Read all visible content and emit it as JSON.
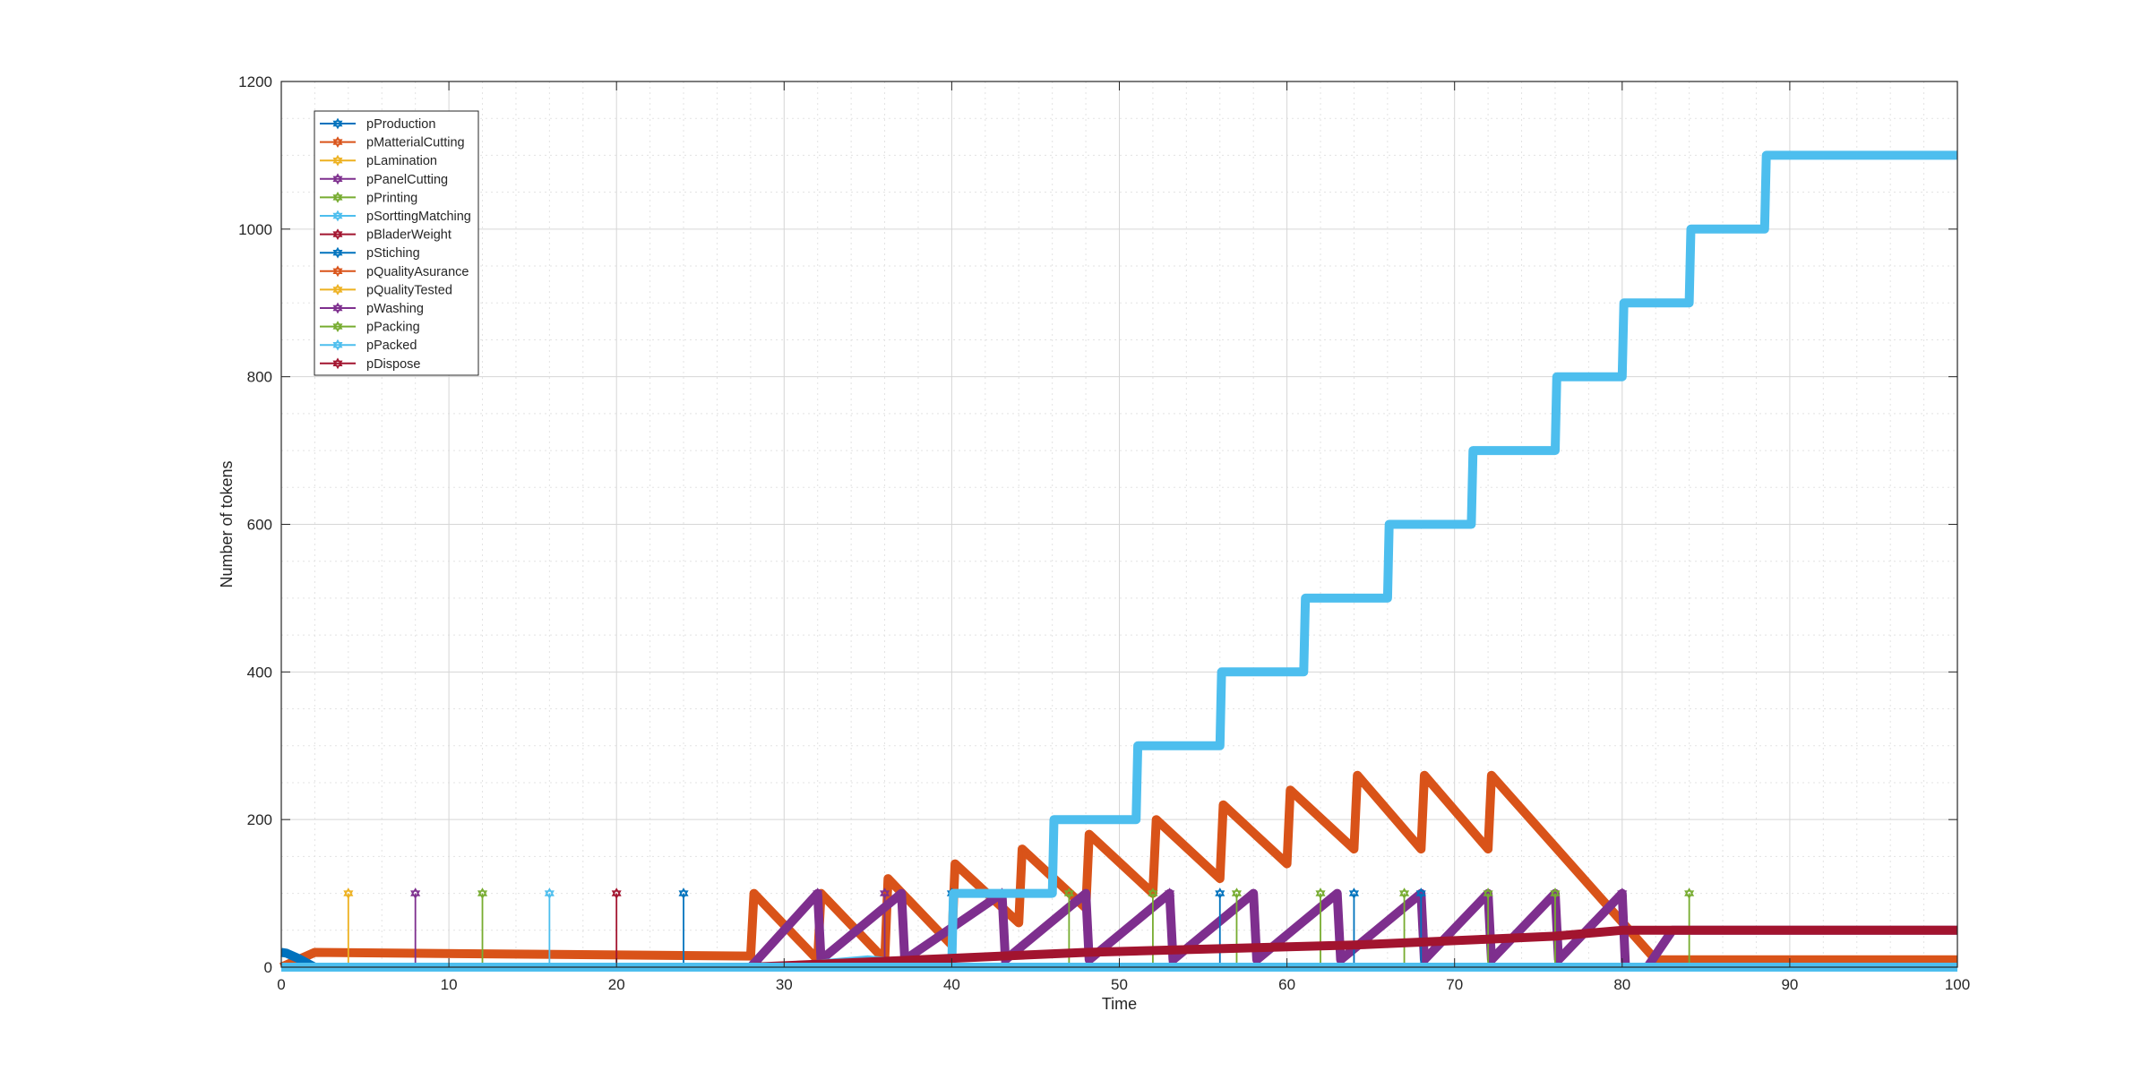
{
  "chart_data": {
    "type": "line",
    "title": "",
    "xlabel": "Time",
    "ylabel": "Number of tokens",
    "xlim": [
      0,
      100
    ],
    "ylim": [
      0,
      1200
    ],
    "xticks": [
      0,
      10,
      20,
      30,
      40,
      50,
      60,
      70,
      80,
      90,
      100
    ],
    "yticks": [
      0,
      200,
      400,
      600,
      800,
      1000,
      1200
    ],
    "grid": true,
    "minor_grid": true,
    "legend_position": "top-left",
    "series": [
      {
        "name": "pProduction",
        "color": "#0072BD",
        "points": [
          [
            0,
            20
          ],
          [
            0.3,
            19
          ],
          [
            1,
            12
          ],
          [
            2,
            0
          ],
          [
            100,
            0
          ]
        ],
        "spikes_at": [
          24,
          40,
          56,
          64,
          68
        ],
        "spike_height": 100
      },
      {
        "name": "pMatterialCutting",
        "color": "#D95319",
        "points": [
          [
            0,
            0
          ],
          [
            2,
            20
          ],
          [
            28,
            15
          ],
          [
            28.2,
            100
          ],
          [
            32,
            10
          ],
          [
            32.2,
            100
          ],
          [
            36,
            10
          ],
          [
            36.2,
            120
          ],
          [
            40,
            30
          ],
          [
            40.2,
            140
          ],
          [
            44,
            60
          ],
          [
            44.2,
            160
          ],
          [
            48,
            80
          ],
          [
            48.2,
            180
          ],
          [
            52,
            100
          ],
          [
            52.2,
            200
          ],
          [
            56,
            120
          ],
          [
            56.2,
            220
          ],
          [
            60,
            140
          ],
          [
            60.2,
            240
          ],
          [
            64,
            160
          ],
          [
            64.2,
            260
          ],
          [
            68,
            160
          ],
          [
            68.2,
            260
          ],
          [
            72,
            160
          ],
          [
            72.2,
            260
          ],
          [
            82,
            10
          ],
          [
            100,
            10
          ]
        ]
      },
      {
        "name": "pLamination",
        "color": "#EDB120",
        "points": [
          [
            0,
            0
          ],
          [
            100,
            0
          ]
        ],
        "spikes_at": [
          4
        ],
        "spike_height": 100
      },
      {
        "name": "pPanelCutting",
        "color": "#7E2F8E",
        "points": [
          [
            0,
            0
          ],
          [
            28,
            0
          ],
          [
            32,
            100
          ],
          [
            32.2,
            10
          ],
          [
            37,
            100
          ],
          [
            37.2,
            10
          ],
          [
            43,
            100
          ],
          [
            43.2,
            10
          ],
          [
            48,
            100
          ],
          [
            48.2,
            10
          ],
          [
            53,
            100
          ],
          [
            53.2,
            10
          ],
          [
            58,
            100
          ],
          [
            58.2,
            10
          ],
          [
            63,
            100
          ],
          [
            63.2,
            10
          ],
          [
            68,
            100
          ],
          [
            68.2,
            10
          ],
          [
            72,
            100
          ],
          [
            72.2,
            10
          ],
          [
            76,
            100
          ],
          [
            76.2,
            10
          ],
          [
            80,
            100
          ],
          [
            80.2,
            0
          ],
          [
            81.5,
            0
          ],
          [
            83,
            50
          ],
          [
            100,
            50
          ]
        ],
        "spikes_at": [
          8,
          32,
          36,
          43,
          53,
          80
        ],
        "spike_height": 100
      },
      {
        "name": "pPrinting",
        "color": "#77AC30",
        "points": [
          [
            0,
            0
          ],
          [
            100,
            0
          ]
        ],
        "spikes_at": [
          12,
          47,
          52,
          57,
          62,
          67,
          72,
          76,
          84
        ],
        "spike_height": 100
      },
      {
        "name": "pSorttingMatching",
        "color": "#4DBEEE",
        "points": [
          [
            0,
            0
          ],
          [
            30,
            0
          ],
          [
            35,
            10
          ],
          [
            40,
            0
          ],
          [
            40.1,
            100
          ],
          [
            46,
            100
          ],
          [
            46.1,
            200
          ],
          [
            51,
            200
          ],
          [
            51.1,
            300
          ],
          [
            56,
            300
          ],
          [
            56.1,
            400
          ],
          [
            61,
            400
          ],
          [
            61.1,
            500
          ],
          [
            66,
            500
          ],
          [
            66.1,
            600
          ],
          [
            71,
            600
          ],
          [
            71.1,
            700
          ],
          [
            76,
            700
          ],
          [
            76.1,
            800
          ],
          [
            80,
            800
          ],
          [
            80.1,
            900
          ],
          [
            84,
            900
          ],
          [
            84.1,
            1000
          ],
          [
            88.5,
            1000
          ],
          [
            88.6,
            1100
          ],
          [
            100,
            1100
          ]
        ],
        "spikes_at": [
          16
        ],
        "spike_height": 100
      },
      {
        "name": "pBladerWeight",
        "color": "#A2142F",
        "points": [
          [
            0,
            0
          ],
          [
            100,
            0
          ]
        ],
        "spikes_at": [
          20
        ],
        "spike_height": 100
      },
      {
        "name": "pStiching",
        "color": "#0072BD",
        "points": [
          [
            0,
            0
          ],
          [
            100,
            0
          ]
        ],
        "spikes_at": [],
        "spike_height": 100
      },
      {
        "name": "pQualityAsurance",
        "color": "#D95319",
        "points": [
          [
            0,
            0
          ],
          [
            100,
            0
          ]
        ],
        "spikes_at": [],
        "spike_height": 100
      },
      {
        "name": "pQualityTested",
        "color": "#EDB120",
        "points": [
          [
            0,
            0
          ],
          [
            100,
            0
          ]
        ],
        "spikes_at": [],
        "spike_height": 100
      },
      {
        "name": "pWashing",
        "color": "#7E2F8E",
        "points": [
          [
            0,
            0
          ],
          [
            100,
            0
          ]
        ],
        "spikes_at": [],
        "spike_height": 100
      },
      {
        "name": "pPacking",
        "color": "#77AC30",
        "points": [
          [
            0,
            0
          ],
          [
            100,
            0
          ]
        ],
        "spikes_at": [],
        "spike_height": 100
      },
      {
        "name": "pPacked",
        "color": "#4DBEEE",
        "points": [
          [
            0,
            0
          ],
          [
            100,
            0
          ]
        ],
        "spikes_at": [],
        "spike_height": 100
      },
      {
        "name": "pDispose",
        "color": "#A2142F",
        "points": [
          [
            0,
            0
          ],
          [
            28,
            0
          ],
          [
            40,
            12
          ],
          [
            48,
            20
          ],
          [
            56,
            25
          ],
          [
            64,
            30
          ],
          [
            72,
            38
          ],
          [
            76,
            42
          ],
          [
            80,
            50
          ],
          [
            100,
            50
          ]
        ]
      }
    ]
  }
}
